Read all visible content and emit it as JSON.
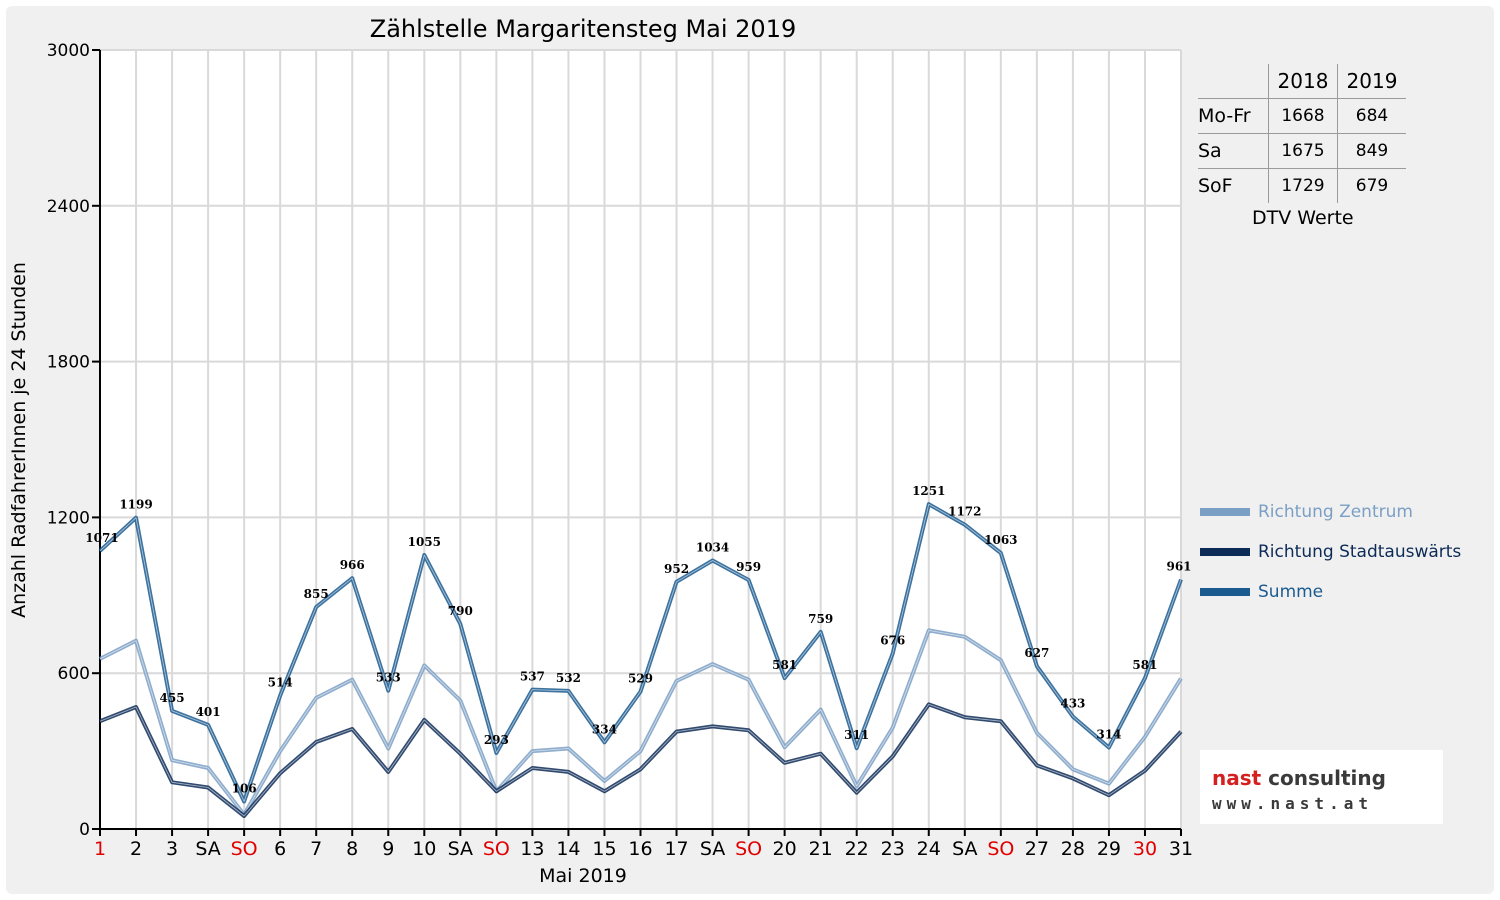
{
  "chart_data": {
    "type": "line",
    "title": "Zählstelle Margaritensteg Mai 2019",
    "ylabel": "Anzahl RadfahrerInnen je 24 Stunden",
    "xlabel": "Mai 2019",
    "ylim": [
      0,
      3000
    ],
    "yticks": [
      0,
      600,
      1200,
      1800,
      2400,
      3000
    ],
    "grid": true,
    "categories": [
      "1",
      "2",
      "3",
      "SA",
      "SO",
      "6",
      "7",
      "8",
      "9",
      "10",
      "SA",
      "SO",
      "13",
      "14",
      "15",
      "16",
      "17",
      "SA",
      "SO",
      "20",
      "21",
      "22",
      "23",
      "24",
      "SA",
      "SO",
      "27",
      "28",
      "29",
      "30",
      "31"
    ],
    "red_categories": [
      0,
      4,
      11,
      18,
      25,
      29
    ],
    "series": [
      {
        "name": "Richtung Zentrum",
        "color": "#7b9fc4",
        "values": [
          655,
          725,
          265,
          235,
          55,
          300,
          505,
          575,
          310,
          630,
          495,
          145,
          300,
          310,
          185,
          300,
          570,
          635,
          575,
          315,
          460,
          165,
          390,
          765,
          740,
          650,
          370,
          230,
          175,
          355,
          580
        ]
      },
      {
        "name": "Richtung Stadtauswärts",
        "color": "#0d2b57",
        "values": [
          415,
          470,
          180,
          160,
          50,
          215,
          335,
          385,
          220,
          420,
          290,
          145,
          235,
          220,
          145,
          230,
          375,
          395,
          380,
          255,
          290,
          140,
          280,
          480,
          430,
          415,
          245,
          195,
          130,
          225,
          375
        ]
      },
      {
        "name": "Summe",
        "color": "#1b5a8f",
        "values": [
          1071,
          1199,
          455,
          401,
          106,
          514,
          855,
          966,
          533,
          1055,
          790,
          293,
          537,
          532,
          334,
          529,
          952,
          1034,
          959,
          581,
          759,
          311,
          676,
          1251,
          1172,
          1063,
          627,
          433,
          314,
          581,
          961
        ]
      }
    ],
    "data_labels": [
      "1071",
      "1199",
      "455",
      "401",
      "106",
      "514",
      "855",
      "966",
      "533",
      "1055",
      "790",
      "293",
      "537",
      "532",
      "334",
      "529",
      "952",
      "1034",
      "959",
      "581",
      "759",
      "311",
      "676",
      "1251",
      "1172",
      "1063",
      "627",
      "433",
      "314",
      "581",
      "961"
    ]
  },
  "dtv_table": {
    "headers": [
      "2018",
      "2019"
    ],
    "rows": [
      {
        "label": "Mo-Fr",
        "v2018": "1668",
        "v2019": "684"
      },
      {
        "label": "Sa",
        "v2018": "1675",
        "v2019": "849"
      },
      {
        "label": "SoF",
        "v2018": "1729",
        "v2019": "679"
      }
    ],
    "caption": "DTV Werte"
  },
  "logo": {
    "word1": "nast",
    "word2": " consulting",
    "url": "www.nast.at"
  }
}
